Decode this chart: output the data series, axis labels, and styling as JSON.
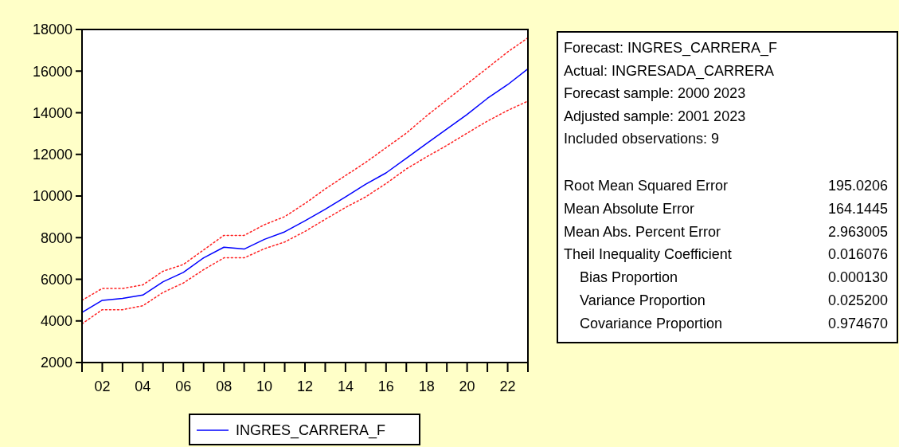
{
  "chart_data": [
    {
      "type": "line",
      "x": [
        2001,
        2002,
        2003,
        2004,
        2005,
        2006,
        2007,
        2008,
        2009,
        2010,
        2011,
        2012,
        2013,
        2014,
        2015,
        2016,
        2017,
        2018,
        2019,
        2020,
        2021,
        2022,
        2023
      ],
      "series": [
        {
          "name": "INGRES_CARRERA_F",
          "color": "#0000ff",
          "line_style": "solid",
          "values": [
            4410,
            4990,
            5080,
            5240,
            5880,
            6330,
            7030,
            7540,
            7450,
            7920,
            8280,
            8810,
            9360,
            9960,
            10570,
            11110,
            11810,
            12520,
            13220,
            13920,
            14690,
            15350,
            16110
          ]
        },
        {
          "color": "#ff2020",
          "line_style": "dotted",
          "values": [
            3860,
            4540,
            4540,
            4730,
            5370,
            5820,
            6460,
            7030,
            7030,
            7470,
            7790,
            8300,
            8880,
            9450,
            9960,
            10600,
            11300,
            11880,
            12430,
            13020,
            13600,
            14110,
            14560
          ]
        },
        {
          "color": "#ff2020",
          "line_style": "dotted",
          "values": [
            4990,
            5560,
            5560,
            5730,
            6390,
            6710,
            7410,
            8110,
            8110,
            8620,
            9010,
            9640,
            10340,
            10980,
            11620,
            12320,
            13020,
            13850,
            14620,
            15390,
            16150,
            16920,
            17600
          ]
        }
      ],
      "xlim": [
        2001,
        2023
      ],
      "xticks": [
        {
          "value": 2001,
          "label": null
        },
        {
          "value": 2002,
          "label": "02"
        },
        {
          "value": 2003,
          "label": null
        },
        {
          "value": 2004,
          "label": "04"
        },
        {
          "value": 2005,
          "label": null
        },
        {
          "value": 2006,
          "label": "06"
        },
        {
          "value": 2007,
          "label": null
        },
        {
          "value": 2008,
          "label": "08"
        },
        {
          "value": 2009,
          "label": null
        },
        {
          "value": 2010,
          "label": "10"
        },
        {
          "value": 2011,
          "label": null
        },
        {
          "value": 2012,
          "label": "12"
        },
        {
          "value": 2013,
          "label": null
        },
        {
          "value": 2014,
          "label": "14"
        },
        {
          "value": 2015,
          "label": null
        },
        {
          "value": 2016,
          "label": "16"
        },
        {
          "value": 2017,
          "label": null
        },
        {
          "value": 2018,
          "label": "18"
        },
        {
          "value": 2019,
          "label": null
        },
        {
          "value": 2020,
          "label": "20"
        },
        {
          "value": 2021,
          "label": null
        },
        {
          "value": 2022,
          "label": "22"
        },
        {
          "value": 2023,
          "label": null
        }
      ],
      "ylim": [
        2000,
        18000
      ],
      "yticks": [
        2000,
        4000,
        6000,
        8000,
        10000,
        12000,
        14000,
        16000,
        18000
      ],
      "legend": "bottom"
    },
    {
      "type": "other",
      "annotations": [
        "Forecast: INGRES_CARRERA_F",
        "Actual: INGRESADA_CARRERA",
        "Forecast sample: 2000 2023",
        "Adjusted sample: 2001 2023",
        "Included observations: 9"
      ],
      "categories": [
        "Root Mean Squared Error",
        "Mean Absolute Error",
        "Mean Abs. Percent Error",
        "Theil Inequality Coefficient",
        "    Bias Proportion",
        "    Variance Proportion",
        "    Covariance Proportion"
      ],
      "value_labels": [
        "195.0206",
        "164.1445",
        "2.963005",
        "0.016076",
        "0.000130",
        "0.025200",
        "0.974670"
      ]
    }
  ]
}
